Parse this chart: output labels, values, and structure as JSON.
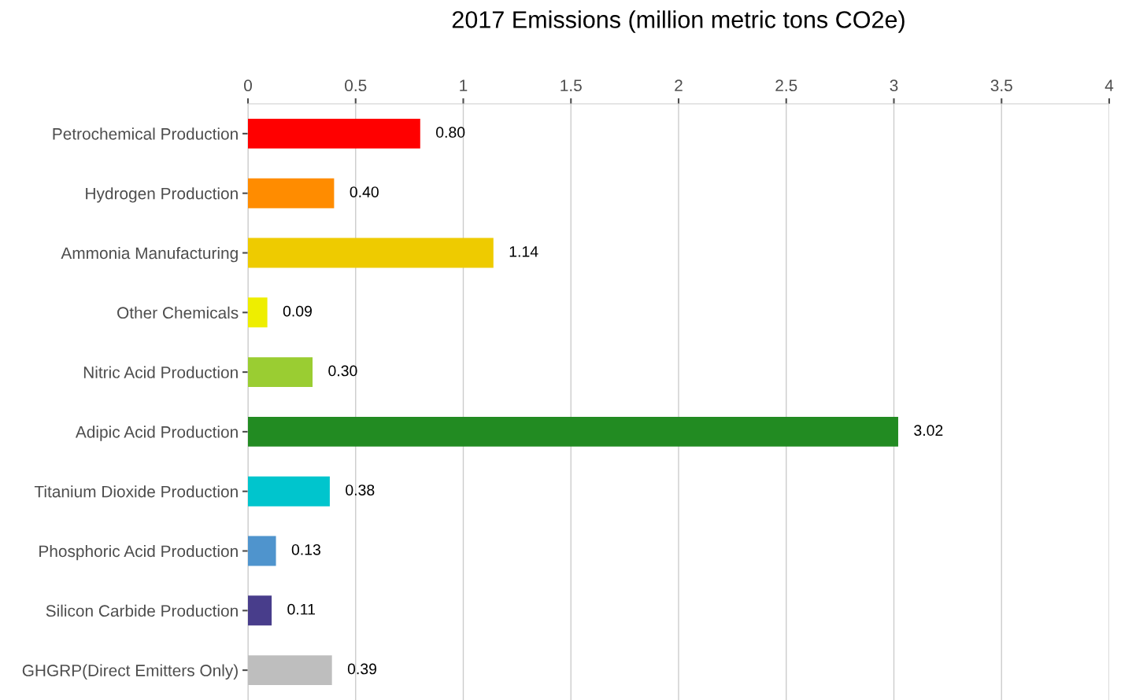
{
  "chart_data": {
    "type": "bar",
    "orientation": "horizontal",
    "title": "2017 Emissions (million metric tons CO2e)",
    "categories": [
      "Petrochemical Production",
      "Hydrogen Production",
      "Ammonia Manufacturing",
      "Other Chemicals",
      "Nitric Acid Production",
      "Adipic Acid Production",
      "Titanium Dioxide Production",
      "Phosphoric Acid Production",
      "Silicon Carbide Production",
      "GHGRP(Direct Emitters Only)"
    ],
    "values": [
      0.8,
      0.4,
      1.14,
      0.09,
      0.3,
      3.02,
      0.38,
      0.13,
      0.11,
      0.39
    ],
    "value_labels": [
      "0.80",
      "0.40",
      "1.14",
      "0.09",
      "0.30",
      "3.02",
      "0.38",
      "0.13",
      "0.11",
      "0.39"
    ],
    "colors": [
      "#ff0000",
      "#ff8c00",
      "#eecb00",
      "#eeee00",
      "#9acd32",
      "#228b22",
      "#00c5cd",
      "#4f94cd",
      "#483d8b",
      "#bebebe"
    ],
    "xlim": [
      0,
      4
    ],
    "xticks": [
      0,
      0.5,
      1,
      1.5,
      2,
      2.5,
      3,
      3.5,
      4
    ],
    "grid": "x",
    "legend": false
  }
}
